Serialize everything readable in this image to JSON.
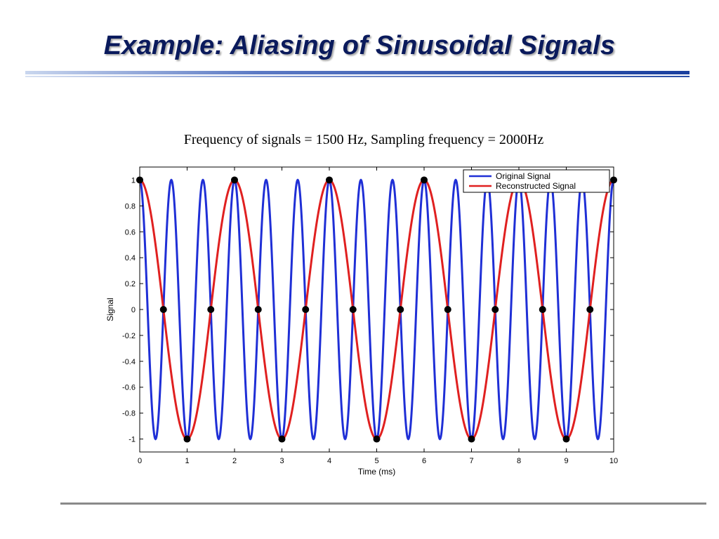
{
  "slide": {
    "title": "Example: Aliasing of Sinusoidal Signals",
    "subtitle": "Frequency of signals = 1500 Hz, Sampling frequency = 2000Hz"
  },
  "chart_data": {
    "type": "line",
    "title": "",
    "xlabel": "Time (ms)",
    "ylabel": "Signal",
    "xlim": [
      0,
      10
    ],
    "ylim": [
      -1.1,
      1.1
    ],
    "xticks": [
      "0",
      "1",
      "2",
      "3",
      "4",
      "5",
      "6",
      "7",
      "8",
      "9",
      "10"
    ],
    "yticks": [
      "1",
      "0.8",
      "0.6",
      "0.4",
      "0.2",
      "0",
      "-0.2",
      "-0.4",
      "-0.6",
      "-0.8",
      "-1"
    ],
    "grid": false,
    "legend_position": "top-right",
    "series": [
      {
        "name": "Original Signal",
        "color": "#1f2fd6",
        "frequency_khz": 1.5,
        "function": "cos"
      },
      {
        "name": "Reconstructed Signal",
        "color": "#e02020",
        "frequency_khz": 0.5,
        "function": "cos"
      }
    ],
    "samples": {
      "color": "#000000",
      "x": [
        0,
        0.5,
        1,
        1.5,
        2,
        2.5,
        3,
        3.5,
        4,
        4.5,
        5,
        5.5,
        6,
        6.5,
        7,
        7.5,
        8,
        8.5,
        9,
        9.5,
        10
      ],
      "y": [
        1,
        0,
        -1,
        0,
        1,
        0,
        -1,
        0,
        1,
        0,
        -1,
        0,
        1,
        0,
        -1,
        0,
        1,
        0,
        -1,
        0,
        1
      ]
    }
  }
}
